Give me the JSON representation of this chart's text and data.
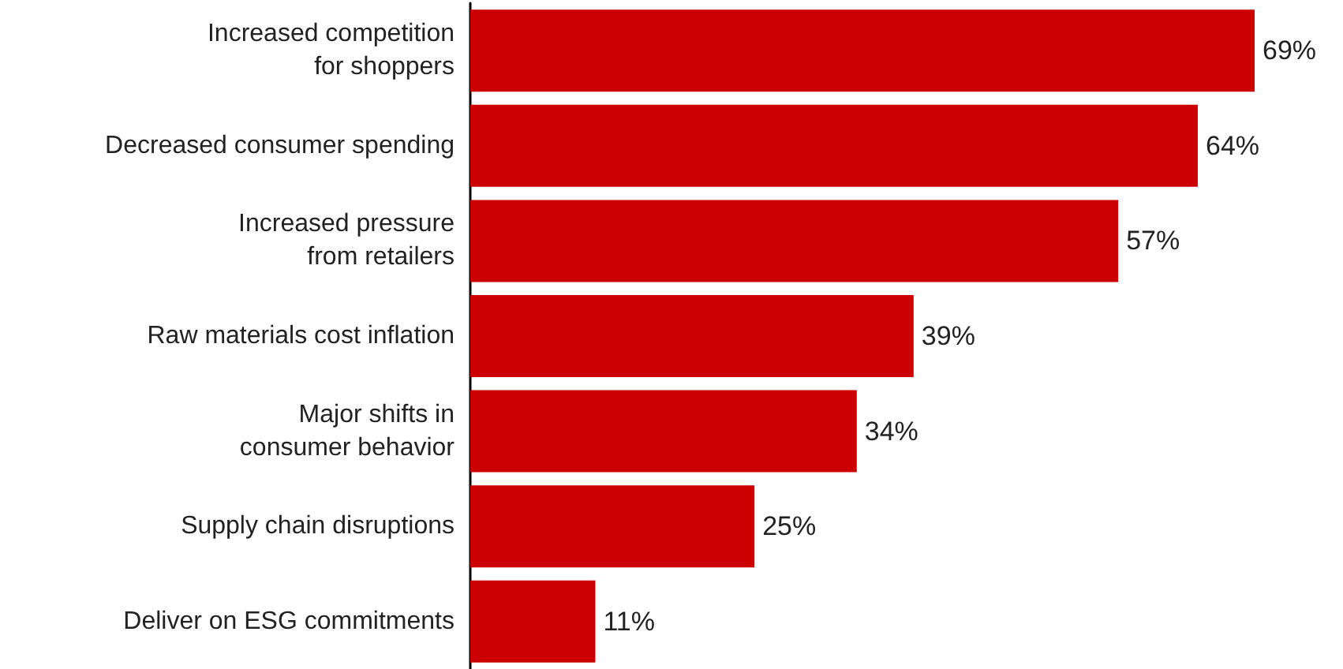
{
  "chart_data": {
    "type": "bar",
    "orientation": "horizontal",
    "categories": [
      "Increased competition\nfor shoppers",
      "Decreased consumer spending",
      "Increased pressure\nfrom retailers",
      "Raw materials cost inflation",
      "Major shifts in\nconsumer behavior",
      "Supply chain disruptions",
      "Deliver on ESG commitments"
    ],
    "values": [
      69,
      64,
      57,
      39,
      34,
      25,
      11
    ],
    "value_labels": [
      "69%",
      "64%",
      "57%",
      "39%",
      "34%",
      "25%",
      "11%"
    ],
    "color": "#cc0000"
  }
}
